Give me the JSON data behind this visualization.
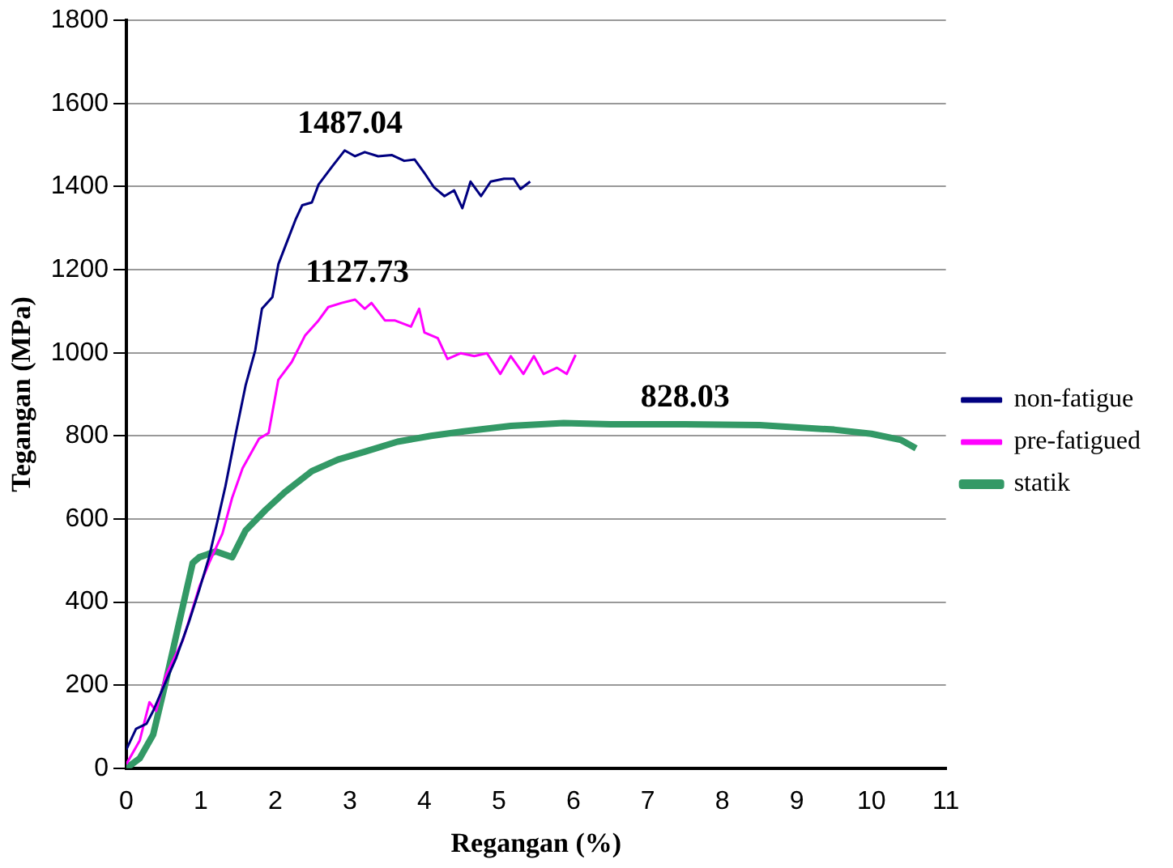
{
  "chart_data": {
    "type": "line",
    "xlabel": "Regangan (%)",
    "ylabel": "Tegangan (MPa)",
    "xlim": [
      0,
      11
    ],
    "xticks": [
      0,
      1,
      2,
      3,
      4,
      5,
      6,
      7,
      8,
      9,
      10,
      11
    ],
    "ylim": [
      0,
      1800
    ],
    "yticks": [
      0,
      200,
      400,
      600,
      800,
      1000,
      1200,
      1400,
      1600,
      1800
    ],
    "grid": "y",
    "legend": "right",
    "marker": "none",
    "line_style": "solid",
    "series": [
      {
        "name": "non-fatigue",
        "color": "#000080",
        "x": [
          0,
          0.13,
          0.27,
          0.36,
          0.53,
          0.67,
          0.84,
          0.98,
          1.11,
          1.24,
          1.33,
          1.47,
          1.6,
          1.73,
          1.82,
          1.96,
          2.04,
          2.13,
          2.27,
          2.36,
          2.49,
          2.58,
          2.76,
          2.93,
          3.07,
          3.2,
          3.38,
          3.56,
          3.73,
          3.87,
          4.0,
          4.13,
          4.27,
          4.4,
          4.51,
          4.62,
          4.76,
          4.89,
          5.07,
          5.2,
          5.29,
          5.42
        ],
        "values": [
          45,
          95,
          107,
          138,
          209,
          266,
          352,
          430,
          508,
          608,
          679,
          807,
          921,
          1006,
          1106,
          1134,
          1213,
          1255,
          1320,
          1355,
          1362,
          1405,
          1448,
          1487,
          1473,
          1483,
          1473,
          1476,
          1462,
          1465,
          1433,
          1398,
          1377,
          1391,
          1348,
          1412,
          1377,
          1412,
          1419,
          1419,
          1394,
          1412
        ]
      },
      {
        "name": "pre-fatigued",
        "color": "#ff00ff",
        "x": [
          0,
          0.18,
          0.31,
          0.4,
          0.53,
          0.76,
          0.98,
          1.11,
          1.29,
          1.42,
          1.56,
          1.78,
          1.91,
          2.04,
          2.22,
          2.4,
          2.58,
          2.71,
          2.89,
          3.07,
          3.2,
          3.29,
          3.47,
          3.6,
          3.82,
          3.93,
          4.0,
          4.18,
          4.31,
          4.49,
          4.67,
          4.84,
          5.02,
          5.16,
          5.33,
          5.47,
          5.6,
          5.78,
          5.91,
          6.03
        ],
        "values": [
          10,
          67,
          159,
          138,
          224,
          309,
          437,
          494,
          565,
          651,
          722,
          793,
          807,
          935,
          978,
          1042,
          1078,
          1110,
          1120,
          1128,
          1106,
          1120,
          1078,
          1078,
          1063,
          1106,
          1049,
          1035,
          985,
          999,
          992,
          999,
          949,
          992,
          949,
          992,
          949,
          964,
          949,
          995
        ]
      },
      {
        "name": "statik",
        "color": "#339966",
        "x": [
          0,
          0.18,
          0.36,
          0.53,
          0.71,
          0.89,
          0.98,
          1.2,
          1.42,
          1.6,
          1.87,
          2.13,
          2.49,
          2.84,
          3.2,
          3.64,
          4.09,
          4.53,
          5.16,
          5.87,
          6.5,
          7.5,
          8.5,
          9.5,
          10,
          10.4,
          10.6
        ],
        "values": [
          0,
          24,
          81,
          209,
          352,
          494,
          508,
          522,
          508,
          572,
          622,
          665,
          715,
          743,
          762,
          786,
          800,
          811,
          824,
          831,
          828,
          828,
          826,
          815,
          805,
          790,
          770
        ]
      }
    ],
    "annotations": [
      {
        "text": "1487.04",
        "x": 3,
        "y": 1487
      },
      {
        "text": "1127.73",
        "x": 3.1,
        "y": 1128
      },
      {
        "text": "828.03",
        "x": 7.5,
        "y": 828
      }
    ]
  }
}
